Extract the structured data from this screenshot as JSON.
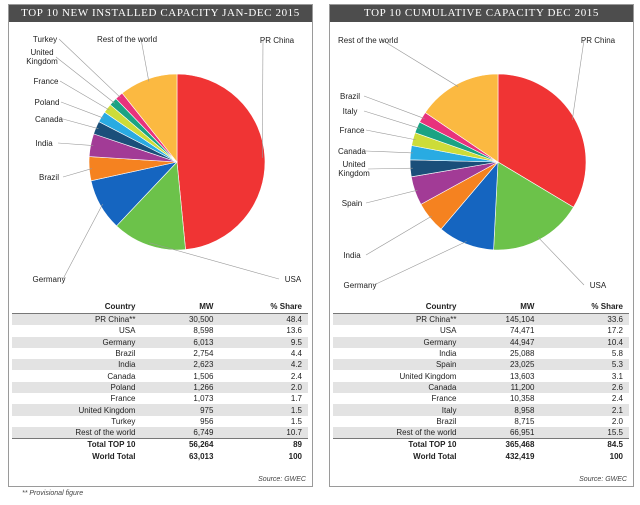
{
  "footnote": "**  Provisional figure",
  "chart_data": [
    {
      "type": "pie",
      "title": "TOP 10 NEW INSTALLED CAPACITY JAN-DEC 2015",
      "categories": [
        "PR China",
        "USA",
        "Germany",
        "Brazil",
        "India",
        "Canada",
        "Poland",
        "France",
        "United Kingdom",
        "Turkey",
        "Rest of the world"
      ],
      "values": [
        48.4,
        13.6,
        9.5,
        4.4,
        4.2,
        2.4,
        2.0,
        1.7,
        1.5,
        1.5,
        10.7
      ],
      "colors": [
        "#f03434",
        "#6cc24a",
        "#1565c0",
        "#f58220",
        "#a23b96",
        "#1a4f7a",
        "#29abe2",
        "#cddc39",
        "#1aa383",
        "#e8327c",
        "#fbb941"
      ],
      "table": {
        "headers": [
          "Country",
          "MW",
          "% Share"
        ],
        "rows": [
          [
            "PR China**",
            "30,500",
            "48.4"
          ],
          [
            "USA",
            "8,598",
            "13.6"
          ],
          [
            "Germany",
            "6,013",
            "9.5"
          ],
          [
            "Brazil",
            "2,754",
            "4.4"
          ],
          [
            "India",
            "2,623",
            "4.2"
          ],
          [
            "Canada",
            "1,506",
            "2.4"
          ],
          [
            "Poland",
            "1,266",
            "2.0"
          ],
          [
            "France",
            "1,073",
            "1.7"
          ],
          [
            "United Kingdom",
            "975",
            "1.5"
          ],
          [
            "Turkey",
            "956",
            "1.5"
          ],
          [
            "Rest of the world",
            "6,749",
            "10.7"
          ]
        ],
        "totals": [
          [
            "Total TOP 10",
            "56,264",
            "89"
          ],
          [
            "World Total",
            "63,013",
            "100"
          ]
        ]
      },
      "source": "Source: GWEC"
    },
    {
      "type": "pie",
      "title": "TOP 10 CUMULATIVE CAPACITY DEC 2015",
      "categories": [
        "PR China",
        "USA",
        "Germany",
        "India",
        "Spain",
        "United Kingdom",
        "Canada",
        "France",
        "Italy",
        "Brazil",
        "Rest of the world"
      ],
      "values": [
        33.6,
        17.2,
        10.4,
        5.8,
        5.3,
        3.1,
        2.6,
        2.4,
        2.1,
        2.0,
        15.5
      ],
      "colors": [
        "#f03434",
        "#6cc24a",
        "#1565c0",
        "#f58220",
        "#a23b96",
        "#1a4f7a",
        "#29abe2",
        "#cddc39",
        "#1aa383",
        "#e8327c",
        "#fbb941"
      ],
      "table": {
        "headers": [
          "Country",
          "MW",
          "% Share"
        ],
        "rows": [
          [
            "PR China**",
            "145,104",
            "33.6"
          ],
          [
            "USA",
            "74,471",
            "17.2"
          ],
          [
            "Germany",
            "44,947",
            "10.4"
          ],
          [
            "India",
            "25,088",
            "5.8"
          ],
          [
            "Spain",
            "23,025",
            "5.3"
          ],
          [
            "United Kingdom",
            "13,603",
            "3.1"
          ],
          [
            "Canada",
            "11,200",
            "2.6"
          ],
          [
            "France",
            "10,358",
            "2.4"
          ],
          [
            "Italy",
            "8,958",
            "2.1"
          ],
          [
            "Brazil",
            "8,715",
            "2.0"
          ],
          [
            "Rest of the world",
            "66,951",
            "15.5"
          ]
        ],
        "totals": [
          [
            "Total TOP 10",
            "365,468",
            "84.5"
          ],
          [
            "World Total",
            "432,419",
            "100"
          ]
        ]
      },
      "source": "Source: GWEC"
    }
  ]
}
